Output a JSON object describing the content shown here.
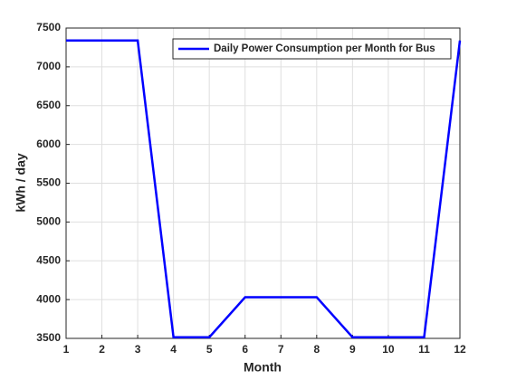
{
  "chart_data": {
    "type": "line",
    "x_label": "Month",
    "y_label": "kWh / day",
    "x": [
      1,
      2,
      3,
      4,
      5,
      6,
      7,
      8,
      9,
      10,
      11,
      12
    ],
    "series": [
      {
        "name": "Daily Power Consumption per Month for Bus",
        "color": "#0000ff",
        "values": [
          7340,
          7340,
          7340,
          3515,
          3515,
          4030,
          4030,
          4030,
          3515,
          3515,
          3515,
          7340
        ]
      }
    ],
    "xlim": [
      1,
      12
    ],
    "xticks": [
      1,
      2,
      3,
      4,
      5,
      6,
      7,
      8,
      9,
      10,
      11,
      12
    ],
    "ylim": [
      3500,
      7500
    ],
    "yticks": [
      3500,
      4000,
      4500,
      5000,
      5500,
      6000,
      6500,
      7000,
      7500
    ],
    "grid": true,
    "legend_position": "upper-right"
  }
}
